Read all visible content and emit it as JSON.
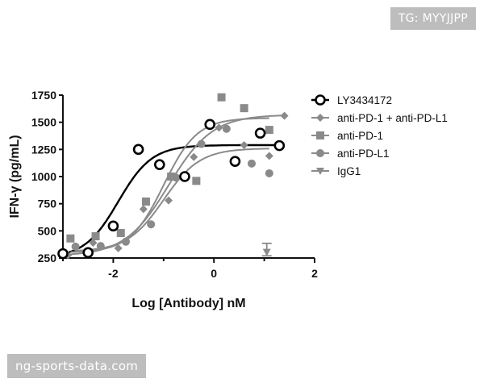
{
  "watermarks": {
    "top_right": "TG: MYYJJPP",
    "bottom_left": "ng-sports-data.com"
  },
  "chart_data": {
    "type": "scatter",
    "xlabel": "Log [Antibody] nM",
    "ylabel": "IFN-γ (pg/mL)",
    "xlim": [
      -3,
      2
    ],
    "ylim": [
      250,
      1750
    ],
    "xticks": [
      -2,
      0,
      2
    ],
    "xtick_labels": [
      "-2",
      "0",
      "2"
    ],
    "yticks": [
      250,
      500,
      750,
      1000,
      1250,
      1500,
      1750
    ],
    "ytick_labels": [
      "250",
      "500",
      "750",
      "1000",
      "1250",
      "1500",
      "1750"
    ],
    "grid": false,
    "legend_position": "right",
    "series": [
      {
        "name": "LY3434172",
        "marker": "open-circle",
        "color": "#000000",
        "x": [
          -3.0,
          -2.5,
          -2.0,
          -1.5,
          -1.08,
          -0.58,
          -0.08,
          0.42,
          0.92,
          1.3
        ],
        "y": [
          290,
          300,
          545,
          1250,
          1110,
          1000,
          1480,
          1140,
          1400,
          1285
        ],
        "fit": {
          "bottom": 250,
          "top": 1290,
          "logec50": -1.9,
          "hill": 1.3
        }
      },
      {
        "name": "anti-PD-1 + anti-PD-L1",
        "marker": "diamond",
        "color": "#8a8a8a",
        "x": [
          -2.9,
          -2.4,
          -1.9,
          -1.4,
          -0.9,
          -0.4,
          0.1,
          0.6,
          1.1,
          1.4
        ],
        "y": [
          275,
          390,
          340,
          700,
          780,
          1180,
          1450,
          1290,
          1190,
          1560
        ],
        "fit": {
          "bottom": 270,
          "top": 1570,
          "logec50": -0.9,
          "hill": 1.0
        }
      },
      {
        "name": "anti-PD-1",
        "marker": "square",
        "color": "#8a8a8a",
        "x": [
          -2.85,
          -2.35,
          -1.85,
          -1.35,
          -0.85,
          -0.35,
          0.15,
          0.6,
          1.1
        ],
        "y": [
          430,
          450,
          480,
          770,
          1000,
          960,
          1730,
          1630,
          1430
        ],
        "fit": {
          "bottom": 300,
          "top": 1540,
          "logec50": -1.0,
          "hill": 1.3
        }
      },
      {
        "name": "anti-PD-L1",
        "marker": "filled-circle",
        "color": "#8a8a8a",
        "x": [
          -2.75,
          -2.25,
          -1.75,
          -1.25,
          -0.75,
          -0.25,
          0.25,
          0.75,
          1.1
        ],
        "y": [
          355,
          360,
          400,
          560,
          990,
          1300,
          1440,
          1120,
          1030
        ],
        "fit": {
          "bottom": 310,
          "top": 1260,
          "logec50": -1.0,
          "hill": 1.2
        }
      },
      {
        "name": "IgG1",
        "marker": "triangle-down",
        "color": "#8a8a8a",
        "x": [
          1.05
        ],
        "y": [
          305
        ],
        "err": [
          [
            270,
            385
          ]
        ]
      }
    ]
  }
}
